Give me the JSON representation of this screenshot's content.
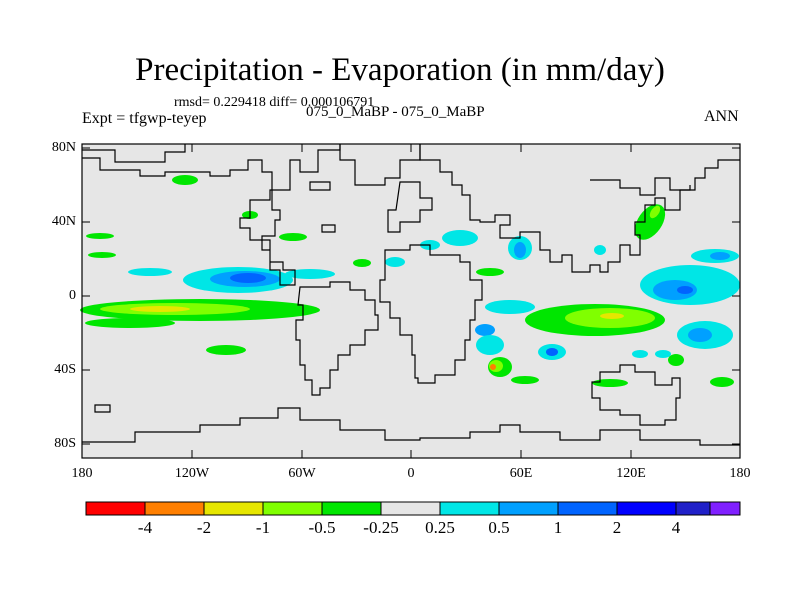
{
  "title": "Precipitation - Evaporation (in mm/day)",
  "stats": "rmsd= 0.229418 diff= 0.000106791",
  "expt": "Expt = tfgwp-teyep",
  "case": "075_0_MaBP - 075_0_MaBP",
  "season": "ANN",
  "lat_labels": [
    "80N",
    "40N",
    "0",
    "40S",
    "80S"
  ],
  "lon_labels": [
    "180",
    "120W",
    "60W",
    "0",
    "60E",
    "120E",
    "180"
  ],
  "colorbar": {
    "colors": [
      "#ff0000",
      "#ff7f00",
      "#e6e600",
      "#80ff00",
      "#00e600",
      "#e6e6e6",
      "#00e6e6",
      "#00a0ff",
      "#0064ff",
      "#0000ff",
      "#2020c8",
      "#8020ff"
    ],
    "labels": [
      "-4",
      "-2",
      "-1",
      "-0.5",
      "-0.25",
      "0.25",
      "0.5",
      "1",
      "2",
      "4"
    ]
  }
}
